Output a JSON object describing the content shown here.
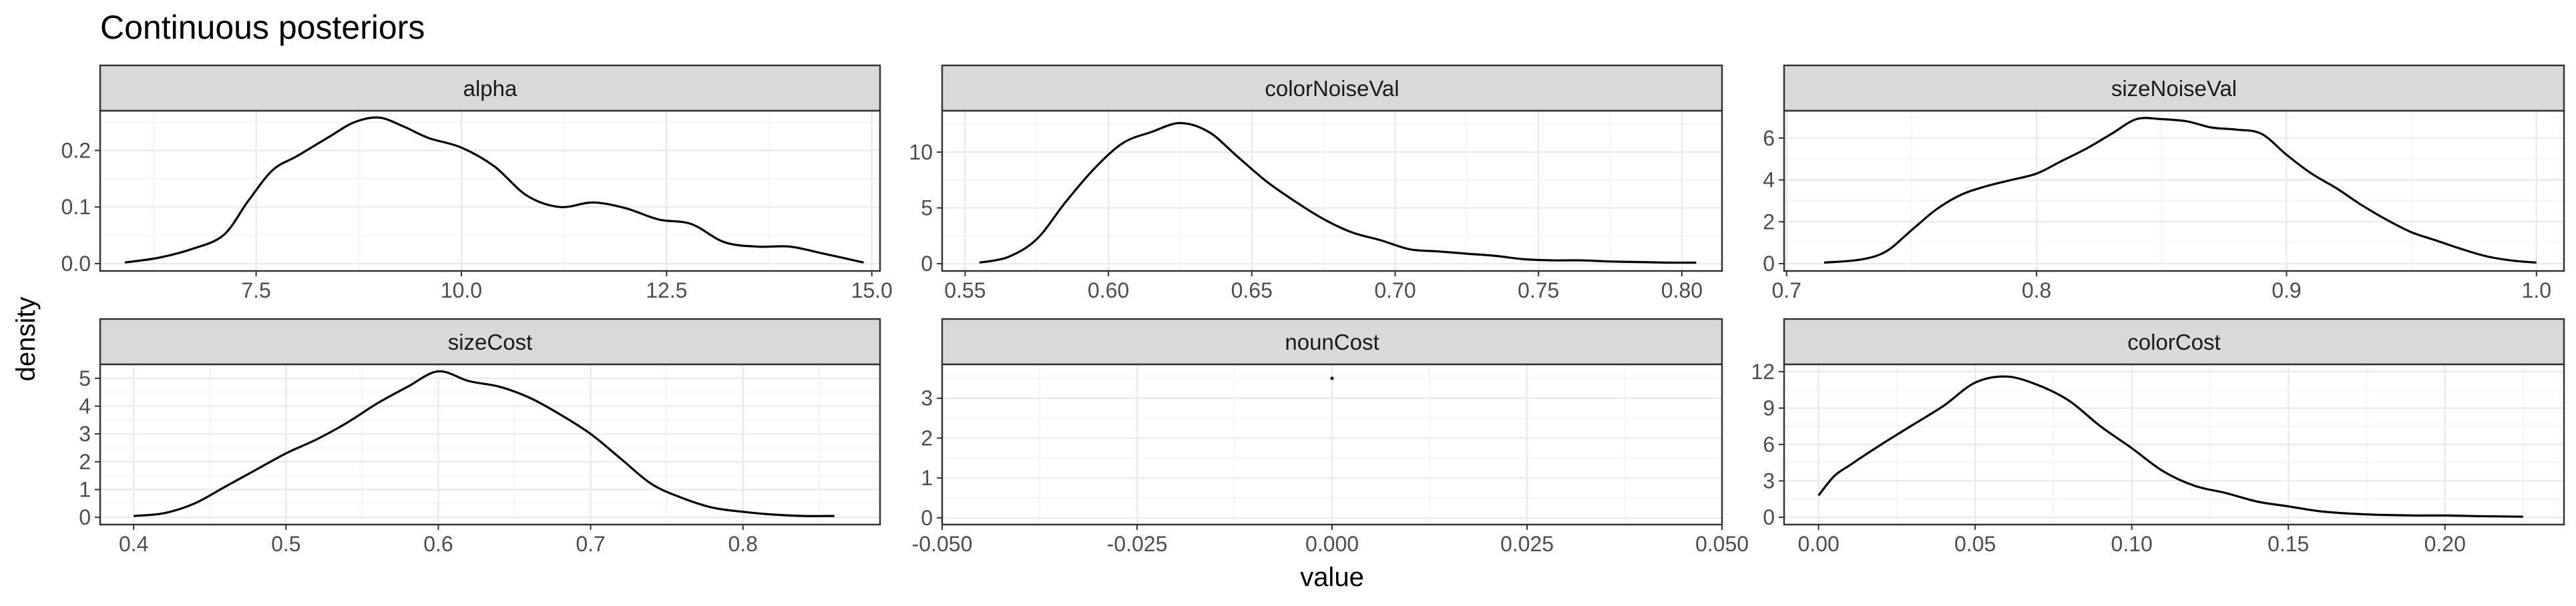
{
  "chart_data": {
    "type": "line",
    "title": "Continuous posteriors",
    "xlabel": "value",
    "ylabel": "density",
    "grid": true,
    "panels": [
      {
        "name": "alpha",
        "xlim": [
          5.6,
          15.1
        ],
        "ylim": [
          -0.013,
          0.27
        ],
        "xticks": [
          7.5,
          10.0,
          12.5,
          15.0
        ],
        "xtick_labels": [
          "7.5",
          "10.0",
          "12.5",
          "15.0"
        ],
        "yticks": [
          0.0,
          0.1,
          0.2
        ],
        "ytick_labels": [
          "0.0",
          "0.1",
          "0.2"
        ],
        "series": [
          {
            "x": [
              5.9,
              6.3,
              6.7,
              7.1,
              7.4,
              7.7,
              8.0,
              8.4,
              8.7,
              9.0,
              9.3,
              9.6,
              10.0,
              10.4,
              10.8,
              11.2,
              11.6,
              12.0,
              12.4,
              12.8,
              13.2,
              13.6,
              14.0,
              14.4,
              14.9
            ],
            "y": [
              0.002,
              0.01,
              0.025,
              0.05,
              0.11,
              0.165,
              0.19,
              0.225,
              0.25,
              0.258,
              0.242,
              0.222,
              0.205,
              0.172,
              0.12,
              0.1,
              0.108,
              0.098,
              0.078,
              0.07,
              0.038,
              0.03,
              0.03,
              0.018,
              0.002
            ]
          }
        ]
      },
      {
        "name": "colorNoiseVal",
        "xlim": [
          0.542,
          0.814
        ],
        "ylim": [
          -0.65,
          13.7
        ],
        "xticks": [
          0.55,
          0.6,
          0.65,
          0.7,
          0.75,
          0.8
        ],
        "xtick_labels": [
          "0.55",
          "0.60",
          "0.65",
          "0.70",
          "0.75",
          "0.80"
        ],
        "yticks": [
          0,
          5,
          10
        ],
        "ytick_labels": [
          "0",
          "5",
          "10"
        ],
        "series": [
          {
            "x": [
              0.555,
              0.565,
              0.575,
              0.585,
              0.595,
              0.605,
              0.615,
              0.625,
              0.635,
              0.645,
              0.655,
              0.665,
              0.675,
              0.685,
              0.695,
              0.705,
              0.715,
              0.725,
              0.735,
              0.745,
              0.755,
              0.765,
              0.775,
              0.785,
              0.795,
              0.805
            ],
            "y": [
              0.1,
              0.6,
              2.2,
              5.5,
              8.5,
              10.8,
              11.8,
              12.6,
              11.8,
              9.6,
              7.4,
              5.6,
              4.0,
              2.8,
              2.1,
              1.3,
              1.1,
              0.9,
              0.7,
              0.4,
              0.3,
              0.3,
              0.2,
              0.15,
              0.1,
              0.1
            ]
          }
        ]
      },
      {
        "name": "sizeNoiseVal",
        "xlim": [
          0.699,
          1.011
        ],
        "ylim": [
          -0.35,
          7.3
        ],
        "xticks": [
          0.7,
          0.8,
          0.9,
          1.0
        ],
        "xtick_labels": [
          "0.7",
          "0.8",
          "0.9",
          "1.0"
        ],
        "yticks": [
          0,
          2,
          4,
          6
        ],
        "ytick_labels": [
          "0",
          "2",
          "4",
          "6"
        ],
        "series": [
          {
            "x": [
              0.715,
              0.73,
              0.74,
              0.75,
              0.76,
              0.77,
              0.78,
              0.79,
              0.8,
              0.81,
              0.82,
              0.83,
              0.84,
              0.85,
              0.86,
              0.87,
              0.88,
              0.89,
              0.9,
              0.91,
              0.92,
              0.93,
              0.94,
              0.95,
              0.96,
              0.97,
              0.98,
              0.99,
              1.0
            ],
            "y": [
              0.05,
              0.2,
              0.6,
              1.6,
              2.6,
              3.3,
              3.7,
              4.0,
              4.3,
              4.9,
              5.5,
              6.2,
              6.9,
              6.9,
              6.8,
              6.5,
              6.4,
              6.2,
              5.2,
              4.3,
              3.6,
              2.8,
              2.1,
              1.5,
              1.1,
              0.7,
              0.35,
              0.15,
              0.05
            ]
          }
        ]
      },
      {
        "name": "sizeCost",
        "xlim": [
          0.378,
          0.89
        ],
        "ylim": [
          -0.26,
          5.5
        ],
        "xticks": [
          0.4,
          0.5,
          0.6,
          0.7,
          0.8
        ],
        "xtick_labels": [
          "0.4",
          "0.5",
          "0.6",
          "0.7",
          "0.8"
        ],
        "yticks": [
          0,
          1,
          2,
          3,
          4,
          5
        ],
        "ytick_labels": [
          "0",
          "1",
          "2",
          "3",
          "4",
          "5"
        ],
        "series": [
          {
            "x": [
              0.4,
              0.42,
              0.44,
              0.46,
              0.48,
              0.5,
              0.52,
              0.54,
              0.56,
              0.58,
              0.6,
              0.62,
              0.64,
              0.66,
              0.68,
              0.7,
              0.72,
              0.74,
              0.76,
              0.78,
              0.8,
              0.82,
              0.84,
              0.86
            ],
            "y": [
              0.05,
              0.15,
              0.5,
              1.1,
              1.7,
              2.3,
              2.8,
              3.4,
              4.1,
              4.7,
              5.25,
              4.9,
              4.7,
              4.3,
              3.7,
              3.0,
              2.1,
              1.2,
              0.7,
              0.35,
              0.2,
              0.1,
              0.05,
              0.05
            ]
          }
        ]
      },
      {
        "name": "nounCost",
        "xlim": [
          -0.05,
          0.05
        ],
        "ylim": [
          -0.17,
          3.85
        ],
        "xticks": [
          -0.05,
          -0.025,
          0.0,
          0.025,
          0.05
        ],
        "xtick_labels": [
          "-0.050",
          "-0.025",
          "0.000",
          "0.025",
          "0.050"
        ],
        "yticks": [
          0,
          1,
          2,
          3
        ],
        "ytick_labels": [
          "0",
          "1",
          "2",
          "3"
        ],
        "series": [
          {
            "x": [
              0.0
            ],
            "y": [
              3.5
            ]
          }
        ]
      },
      {
        "name": "colorCost",
        "xlim": [
          -0.011,
          0.238
        ],
        "ylim": [
          -0.6,
          12.6
        ],
        "xticks": [
          0.0,
          0.05,
          0.1,
          0.15,
          0.2
        ],
        "xtick_labels": [
          "0.00",
          "0.05",
          "0.10",
          "0.15",
          "0.20"
        ],
        "yticks": [
          0,
          3,
          6,
          9,
          12
        ],
        "ytick_labels": [
          "0",
          "3",
          "6",
          "9",
          "12"
        ],
        "series": [
          {
            "x": [
              0.0,
              0.005,
              0.01,
              0.02,
              0.03,
              0.04,
              0.05,
              0.06,
              0.07,
              0.08,
              0.09,
              0.1,
              0.11,
              0.12,
              0.13,
              0.14,
              0.15,
              0.16,
              0.17,
              0.18,
              0.19,
              0.2,
              0.21,
              0.225
            ],
            "y": [
              1.8,
              3.4,
              4.3,
              6.0,
              7.6,
              9.2,
              11.1,
              11.6,
              10.9,
              9.6,
              7.5,
              5.7,
              3.8,
              2.6,
              2.0,
              1.3,
              0.9,
              0.5,
              0.3,
              0.2,
              0.15,
              0.15,
              0.1,
              0.05
            ]
          }
        ]
      }
    ]
  }
}
